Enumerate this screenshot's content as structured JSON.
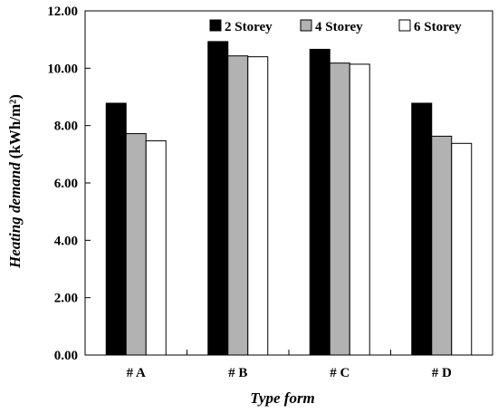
{
  "chart_data": {
    "type": "bar",
    "categories": [
      "# A",
      "# B",
      "# C",
      "# D"
    ],
    "series": [
      {
        "name": "2 Storey",
        "color": "#000000",
        "values": [
          8.78,
          10.93,
          10.66,
          8.78
        ]
      },
      {
        "name": "4 Storey",
        "color": "#b2b2b2",
        "values": [
          7.72,
          10.43,
          10.18,
          7.63
        ]
      },
      {
        "name": "6 Storey",
        "color": "#ffffff",
        "values": [
          7.47,
          10.4,
          10.14,
          7.38
        ]
      }
    ],
    "xlabel": "Type form",
    "ylabel": "Heating demand",
    "ylabel_unit": "(kWh/m²)",
    "ylim": [
      0,
      12
    ],
    "yticks": [
      "0.00",
      "2.00",
      "4.00",
      "6.00",
      "8.00",
      "10.00",
      "12.00"
    ],
    "grid": false,
    "legend_position": "top-right"
  }
}
